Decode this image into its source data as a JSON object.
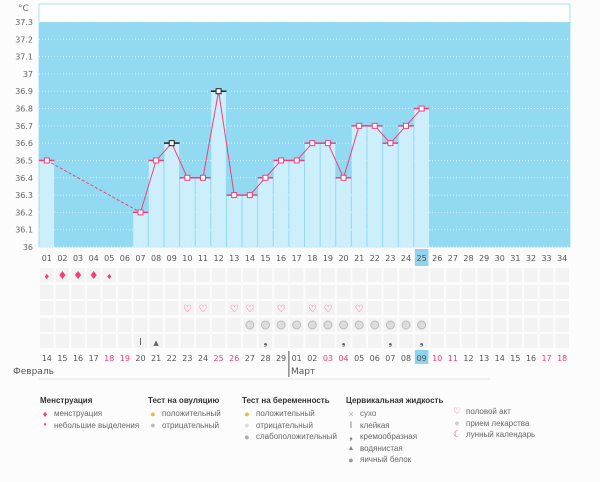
{
  "chart_data": {
    "type": "bar",
    "unit": "°C",
    "ylim": [
      36,
      37.3
    ],
    "yticks": [
      "36",
      "36.1",
      "36.2",
      "36.3",
      "36.4",
      "36.5",
      "36.6",
      "36.7",
      "36.8",
      "36.9",
      "37",
      "37.1",
      "37.2",
      "37.3"
    ],
    "cycle_days": [
      "01",
      "02",
      "03",
      "04",
      "05",
      "06",
      "07",
      "08",
      "09",
      "10",
      "11",
      "12",
      "13",
      "14",
      "15",
      "16",
      "17",
      "18",
      "19",
      "20",
      "21",
      "22",
      "23",
      "24",
      "25",
      "26",
      "27",
      "28",
      "29",
      "30",
      "31",
      "32",
      "33",
      "34"
    ],
    "current_day_index": 24,
    "temperatures": [
      36.5,
      null,
      null,
      null,
      null,
      null,
      36.2,
      36.5,
      36.6,
      36.4,
      36.4,
      36.9,
      36.3,
      36.3,
      36.4,
      36.5,
      36.5,
      36.6,
      36.6,
      36.4,
      36.7,
      36.7,
      36.6,
      36.7,
      36.8
    ],
    "marked_days": [
      "09",
      "12"
    ],
    "menstruation": [
      "small",
      "full",
      "full",
      "full",
      "small"
    ],
    "intercourse_days": [
      "10",
      "11",
      "13",
      "14",
      "16",
      "18",
      "19",
      "21"
    ],
    "medication_days": [
      "14",
      "15",
      "16",
      "17",
      "18",
      "19",
      "20",
      "21",
      "22",
      "23",
      "24",
      "25"
    ],
    "cervical": {
      "07": "sticky",
      "08": "watery",
      "15": "creamy",
      "20": "creamy",
      "23": "creamy",
      "25": "creamy"
    },
    "dates": [
      "14",
      "15",
      "16",
      "17",
      "18",
      "19",
      "20",
      "21",
      "22",
      "23",
      "24",
      "25",
      "26",
      "27",
      "28",
      "29",
      "01",
      "02",
      "03",
      "04",
      "05",
      "06",
      "07",
      "08",
      "09",
      "10",
      "11",
      "12",
      "13",
      "14",
      "15",
      "16",
      "17",
      "18"
    ],
    "weekend_indexes": [
      4,
      5,
      11,
      12,
      18,
      19,
      25,
      26,
      32,
      33
    ],
    "months": [
      "Февраль",
      "Март"
    ],
    "colors": {
      "bg": "#92d9f2",
      "bar": "#cdeefb",
      "line": "#f0407a",
      "highlight": "#8fd3ee"
    }
  },
  "legend": {
    "menstruation": {
      "title": "Менструация",
      "items": [
        "менструация",
        "небольшие выделения"
      ]
    },
    "ovulation": {
      "title": "Тест на овуляцию",
      "items": [
        "положительный",
        "отрицательный"
      ]
    },
    "pregnancy": {
      "title": "Тест на беременность",
      "items": [
        "положительный",
        "отрицательный",
        "слабоположительный"
      ]
    },
    "cervical": {
      "title": "Цервикальная жидкость",
      "items": [
        "сухо",
        "клейкая",
        "кремообразная",
        "водянистая",
        "яичный белок"
      ]
    },
    "other": {
      "items": [
        "половой акт",
        "прием лекарства",
        "лунный календарь"
      ]
    }
  }
}
